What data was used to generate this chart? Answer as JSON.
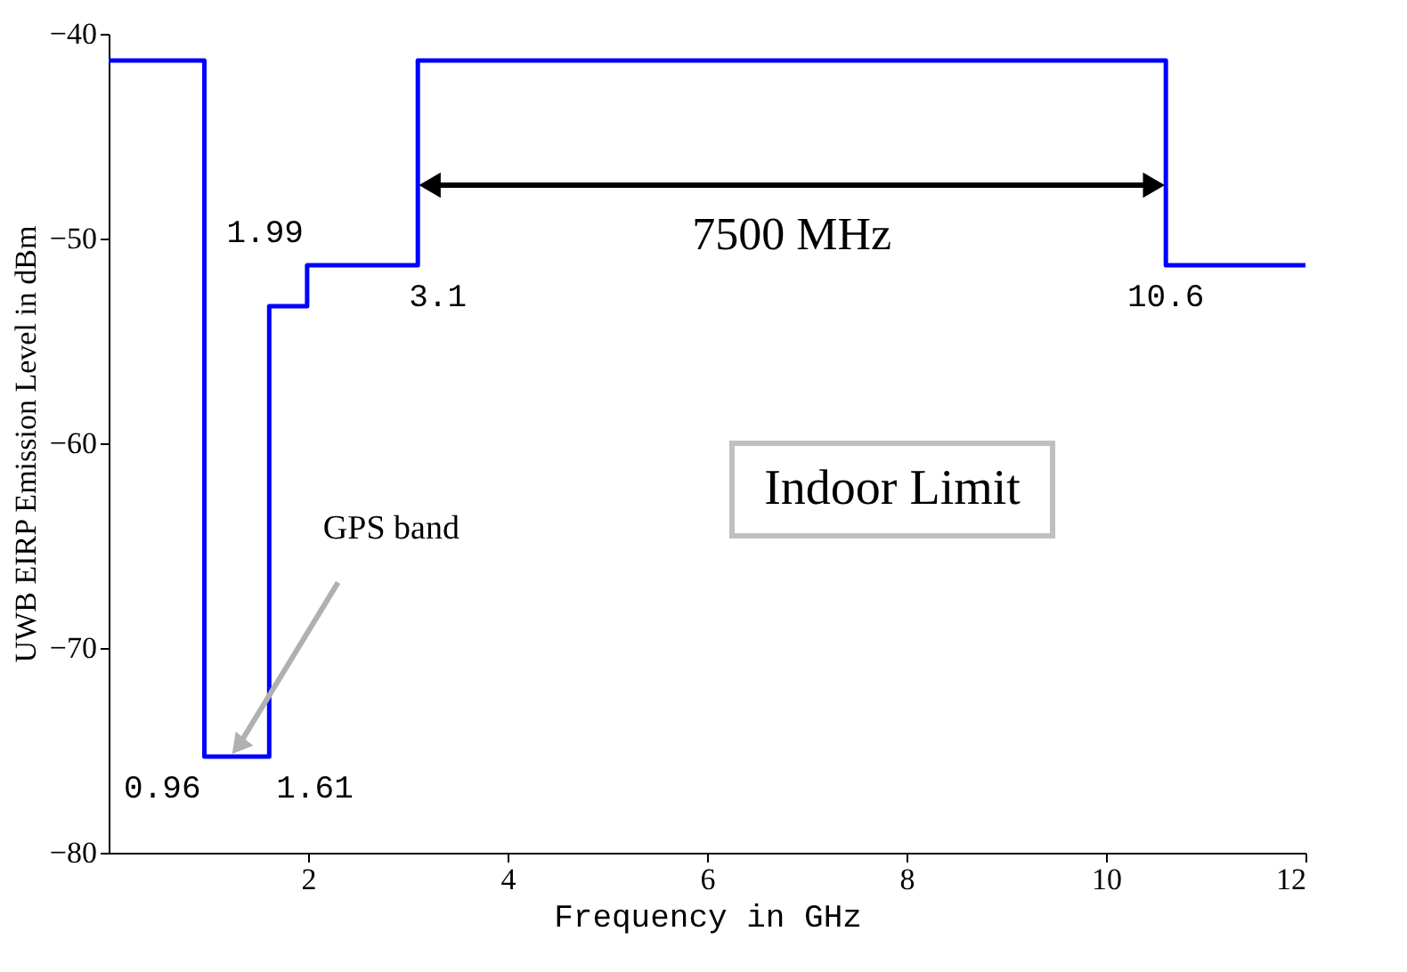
{
  "chart_data": {
    "type": "step",
    "x": [
      0,
      0.96,
      1.61,
      1.99,
      3.1,
      10.6,
      12
    ],
    "series": [
      {
        "color": "#0000ff",
        "values": [
          -41.3,
          -75.3,
          -53.3,
          -51.3,
          -41.3,
          -51.3,
          -51.3
        ]
      }
    ],
    "xlabel": "Frequency in GHz",
    "ylabel": "UWB EIRP Emission Level in dBm",
    "xlim": [
      0,
      12
    ],
    "xticks": [
      2,
      4,
      6,
      8,
      10,
      12
    ],
    "ylim": [
      -80,
      -40
    ],
    "yticks": [
      -40,
      -50,
      -60,
      -70,
      -80
    ],
    "grid": false,
    "annotations": [
      {
        "text": "0.96",
        "x": 0.96,
        "y": -75.3
      },
      {
        "text": "1.61",
        "x": 1.61,
        "y": -75.3
      },
      {
        "text": "1.99",
        "x": 1.99,
        "y": -51.3
      },
      {
        "text": "3.1",
        "x": 3.1,
        "y": -51.3
      },
      {
        "text": "10.6",
        "x": 10.6,
        "y": -51.3
      },
      {
        "text": "GPS band",
        "x": 1.3,
        "y": -74.8
      },
      "7500 MHz",
      "Indoor Limit"
    ]
  }
}
